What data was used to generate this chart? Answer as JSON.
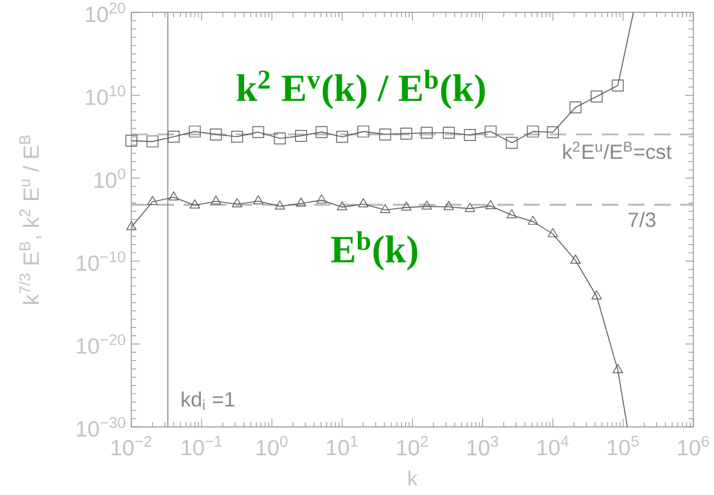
{
  "chart_data": {
    "type": "line",
    "xlabel": "k",
    "ylabel": "k$^{7/3}$ E$^{B}$, k$^{2}$ E$^{u}$ / E$^{B}$",
    "log": "xy",
    "x": [
      0.01,
      0.02,
      0.04,
      0.08,
      0.16,
      0.32,
      0.64,
      1.3,
      2.6,
      5.1,
      10,
      20,
      41,
      82,
      160,
      330,
      660,
      1300,
      2600,
      5200,
      10000,
      21000,
      42000,
      84000
    ],
    "series": [
      {
        "name": "k$^{2}$ E$^{v}$(k) / E$^{b}$(k)",
        "color": "#5a5a5a",
        "marker": "square",
        "values": [
          33000.0,
          27000.0,
          100000.0,
          430000.0,
          190000.0,
          100000.0,
          370000.0,
          62000.0,
          130000.0,
          370000.0,
          95000.0,
          430000.0,
          190000.0,
          240000.0,
          300000.0,
          300000.0,
          160000.0,
          430000.0,
          19000.0,
          430000.0,
          350000.0,
          350000000.0,
          7100000000.0,
          150000000000.0
        ]
      },
      {
        "name": "E$^{b}$(k)",
        "color": "#5a5a5a",
        "marker": "triangle",
        "values": [
          1.3e-06,
          0.0014,
          0.0051,
          0.00054,
          0.0016,
          0.00075,
          0.0017,
          0.0004,
          0.00091,
          0.0022,
          0.00033,
          0.00075,
          0.00015,
          0.0003,
          0.0004,
          0.00035,
          0.00021,
          0.00045,
          3.5e-05,
          5.9e-06,
          1.9e-07,
          1.2e-10,
          5.9e-15,
          7.5e-24
        ]
      },
      {
        "type": "line",
        "color": "#5a5a5a",
        "marker": "none",
        "x": [
          84000,
          140000
        ],
        "values": [
          150000000000.0,
          1e+20
        ]
      },
      {
        "type": "line",
        "color": "#5a5a5a",
        "marker": "none",
        "x": [
          84000,
          115000
        ],
        "values": [
          7.5e-24,
          1e-30
        ]
      }
    ],
    "xlim": [
      0.01,
      1000000
    ],
    "ylim": [
      1e-30,
      1e+20
    ],
    "xticks": [
      {
        "value": 0.01,
        "label": "10$^{−2}$"
      },
      {
        "value": 0.1,
        "label": "10$^{−1}$"
      },
      {
        "value": 1,
        "label": "10$^{0}$"
      },
      {
        "value": 10,
        "label": "10$^{1}$"
      },
      {
        "value": 100,
        "label": "10$^{2}$"
      },
      {
        "value": 1000,
        "label": "10$^{3}$"
      },
      {
        "value": 10000,
        "label": "10$^{4}$"
      },
      {
        "value": 100000,
        "label": "10$^{5}$"
      },
      {
        "value": 1000000,
        "label": "10$^{6}$"
      }
    ],
    "yticks": [
      {
        "value": 1e-30,
        "label": "10$^{−30}$"
      },
      {
        "value": 1e-20,
        "label": "10$^{−20}$"
      },
      {
        "value": 1e-10,
        "label": "10$^{−10}$"
      },
      {
        "value": 1,
        "label": "10$^{0}$"
      },
      {
        "value": 10000000000.0,
        "label": "10$^{10}$"
      },
      {
        "value": 1e+20,
        "label": "10$^{20}$"
      }
    ],
    "ref_lines": [
      {
        "axis": "y",
        "value": 190000,
        "label": "k$^{2}$E$^{u}$/E$^{B}$=cst",
        "color": "#b8b8b8",
        "line_style": "dashed"
      },
      {
        "axis": "y",
        "value": 0.00062,
        "color": "#b8b8b8",
        "line_style": "dashed"
      },
      {
        "axis": "x",
        "value": 0.033,
        "color": "#707070",
        "line_style": "solid"
      }
    ],
    "annotations": [
      {
        "text": "7/3",
        "x": 300000,
        "y": 0.00062
      },
      {
        "text": "kd$_{i}$ =1",
        "x": 0.033,
        "y": 1e-28
      }
    ]
  }
}
